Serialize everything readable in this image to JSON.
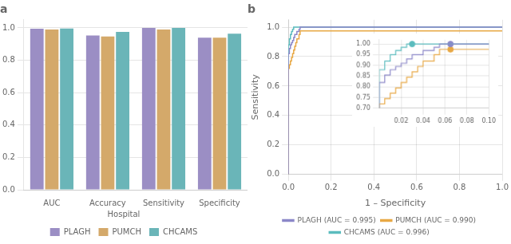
{
  "chart_data": [
    {
      "type": "bar",
      "title": "a",
      "categories": [
        "AUC",
        "Accuracy",
        "Sensitivity",
        "Specificity"
      ],
      "series": [
        {
          "name": "PLAGH",
          "color": "#9b8ec4",
          "values": [
            0.995,
            0.953,
            1.0,
            0.94
          ]
        },
        {
          "name": "PUMCH",
          "color": "#d4a96a",
          "values": [
            0.99,
            0.947,
            0.99,
            0.94
          ]
        },
        {
          "name": "CHCAMS",
          "color": "#6ab5b8",
          "values": [
            0.996,
            0.975,
            1.0,
            0.964
          ]
        }
      ],
      "ylim": [
        0,
        1.05
      ],
      "yticks": [
        {
          "value": 0,
          "label": "0.0"
        },
        0.2,
        0.4,
        0.6,
        0.8,
        {
          "value": 1,
          "label": "1.0"
        }
      ],
      "grid": "y",
      "legend": "bottom",
      "legend_title": "Hospital"
    },
    {
      "type": "line",
      "title": "b",
      "xlabel": "1 – Specificity",
      "ylabel": "Sensitivity",
      "series": [
        {
          "name": "PLAGH (AUC = 0.995)",
          "color": "#8b87c8",
          "x": [
            0,
            0.0,
            0.005,
            0.005,
            0.01,
            0.01,
            0.015,
            0.015,
            0.02,
            0.02,
            0.025,
            0.025,
            0.03,
            0.03,
            0.04,
            0.04,
            0.05,
            0.05,
            0.055,
            0.055,
            0.065,
            0.065,
            1.0
          ],
          "values": [
            0,
            0.82,
            0.82,
            0.855,
            0.855,
            0.88,
            0.88,
            0.895,
            0.895,
            0.91,
            0.91,
            0.93,
            0.93,
            0.95,
            0.95,
            0.97,
            0.97,
            0.985,
            0.985,
            1.0,
            1.0,
            1.0,
            1.0
          ]
        },
        {
          "name": "PUMCH (AUC = 0.990)",
          "color": "#e8a844",
          "x": [
            0,
            0.0,
            0.005,
            0.005,
            0.01,
            0.01,
            0.015,
            0.015,
            0.02,
            0.02,
            0.025,
            0.025,
            0.03,
            0.03,
            0.035,
            0.035,
            0.04,
            0.04,
            0.05,
            0.05,
            0.055,
            0.055,
            0.065,
            0.065,
            1.0
          ],
          "values": [
            0,
            0.72,
            0.72,
            0.745,
            0.745,
            0.77,
            0.77,
            0.795,
            0.795,
            0.82,
            0.82,
            0.845,
            0.845,
            0.87,
            0.87,
            0.895,
            0.895,
            0.92,
            0.92,
            0.95,
            0.95,
            0.975,
            0.975,
            0.975,
            0.975
          ]
        },
        {
          "name": "CHCAMS (AUC = 0.996)",
          "color": "#5bbcbe",
          "x": [
            0,
            0.0,
            0.005,
            0.005,
            0.01,
            0.01,
            0.015,
            0.015,
            0.02,
            0.02,
            0.025,
            0.025,
            0.03,
            0.03,
            1.0
          ],
          "values": [
            0,
            0.88,
            0.88,
            0.92,
            0.92,
            0.95,
            0.95,
            0.97,
            0.97,
            0.985,
            0.985,
            1.0,
            1.0,
            1.0,
            1.0
          ]
        }
      ],
      "xlim": [
        0,
        1
      ],
      "xticks": [
        {
          "value": 0,
          "label": "0.0"
        },
        0.2,
        0.4,
        0.6,
        0.8,
        {
          "value": 1,
          "label": "1.0"
        }
      ],
      "ylim": [
        0,
        1.05
      ],
      "yticks": [
        {
          "value": 0,
          "label": "0.0"
        },
        0.2,
        0.4,
        0.6,
        0.8,
        {
          "value": 1,
          "label": "1.0"
        }
      ],
      "grid": true,
      "legend": "bottom"
    },
    {
      "type": "scatter",
      "marker": "circle",
      "series": [
        {
          "color": "#5bbcbe",
          "x": [
            0.03
          ],
          "values": [
            1.0
          ]
        },
        {
          "color": "#8b87c8",
          "x": [
            0.065
          ],
          "values": [
            1.0
          ]
        },
        {
          "color": "#e8a844",
          "x": [
            0.065
          ],
          "values": [
            0.975
          ]
        }
      ],
      "xlim": [
        0.0,
        0.1
      ],
      "xticks": [
        0.02,
        0.04,
        0.06,
        0.08,
        {
          "value": 0.1,
          "label": "0.10"
        }
      ],
      "ylim": [
        0.7,
        1.02
      ],
      "yticks": [
        {
          "value": 0.7,
          "label": "0.70"
        },
        0.75,
        {
          "value": 0.8,
          "label": "0.80"
        },
        0.85,
        {
          "value": 0.9,
          "label": "0.90"
        },
        0.95,
        {
          "value": 1,
          "label": "1.00"
        }
      ],
      "grid": true
    }
  ]
}
